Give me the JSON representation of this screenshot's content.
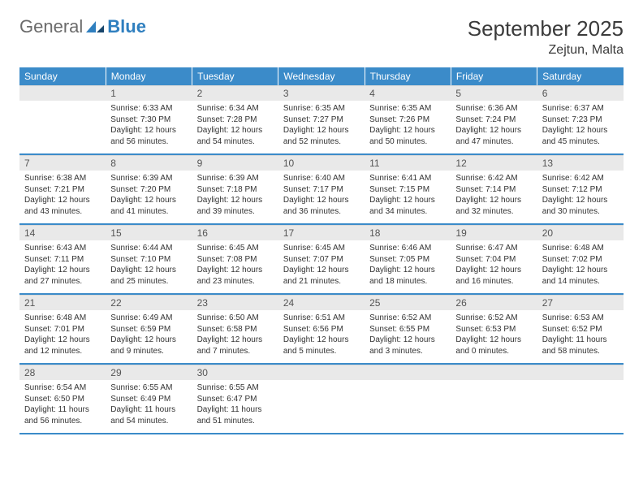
{
  "logo": {
    "text1": "General",
    "text2": "Blue"
  },
  "title": "September 2025",
  "location": "Zejtun, Malta",
  "dow": [
    "Sunday",
    "Monday",
    "Tuesday",
    "Wednesday",
    "Thursday",
    "Friday",
    "Saturday"
  ],
  "colors": {
    "header_bg": "#3b8bc9",
    "header_text": "#ffffff",
    "daynum_bg": "#e9e9e9",
    "row_border": "#3b8bc9",
    "logo_gray": "#6b6b6b",
    "logo_blue": "#2f7fbf",
    "text": "#333333"
  },
  "fonts": {
    "month_title_pt": 26,
    "location_pt": 16,
    "dow_pt": 12,
    "daynum_pt": 12,
    "daydata_pt": 10
  },
  "weeks": [
    [
      {
        "n": "",
        "sr": "",
        "ss": "",
        "dl": ""
      },
      {
        "n": "1",
        "sr": "Sunrise: 6:33 AM",
        "ss": "Sunset: 7:30 PM",
        "dl": "Daylight: 12 hours and 56 minutes."
      },
      {
        "n": "2",
        "sr": "Sunrise: 6:34 AM",
        "ss": "Sunset: 7:28 PM",
        "dl": "Daylight: 12 hours and 54 minutes."
      },
      {
        "n": "3",
        "sr": "Sunrise: 6:35 AM",
        "ss": "Sunset: 7:27 PM",
        "dl": "Daylight: 12 hours and 52 minutes."
      },
      {
        "n": "4",
        "sr": "Sunrise: 6:35 AM",
        "ss": "Sunset: 7:26 PM",
        "dl": "Daylight: 12 hours and 50 minutes."
      },
      {
        "n": "5",
        "sr": "Sunrise: 6:36 AM",
        "ss": "Sunset: 7:24 PM",
        "dl": "Daylight: 12 hours and 47 minutes."
      },
      {
        "n": "6",
        "sr": "Sunrise: 6:37 AM",
        "ss": "Sunset: 7:23 PM",
        "dl": "Daylight: 12 hours and 45 minutes."
      }
    ],
    [
      {
        "n": "7",
        "sr": "Sunrise: 6:38 AM",
        "ss": "Sunset: 7:21 PM",
        "dl": "Daylight: 12 hours and 43 minutes."
      },
      {
        "n": "8",
        "sr": "Sunrise: 6:39 AM",
        "ss": "Sunset: 7:20 PM",
        "dl": "Daylight: 12 hours and 41 minutes."
      },
      {
        "n": "9",
        "sr": "Sunrise: 6:39 AM",
        "ss": "Sunset: 7:18 PM",
        "dl": "Daylight: 12 hours and 39 minutes."
      },
      {
        "n": "10",
        "sr": "Sunrise: 6:40 AM",
        "ss": "Sunset: 7:17 PM",
        "dl": "Daylight: 12 hours and 36 minutes."
      },
      {
        "n": "11",
        "sr": "Sunrise: 6:41 AM",
        "ss": "Sunset: 7:15 PM",
        "dl": "Daylight: 12 hours and 34 minutes."
      },
      {
        "n": "12",
        "sr": "Sunrise: 6:42 AM",
        "ss": "Sunset: 7:14 PM",
        "dl": "Daylight: 12 hours and 32 minutes."
      },
      {
        "n": "13",
        "sr": "Sunrise: 6:42 AM",
        "ss": "Sunset: 7:12 PM",
        "dl": "Daylight: 12 hours and 30 minutes."
      }
    ],
    [
      {
        "n": "14",
        "sr": "Sunrise: 6:43 AM",
        "ss": "Sunset: 7:11 PM",
        "dl": "Daylight: 12 hours and 27 minutes."
      },
      {
        "n": "15",
        "sr": "Sunrise: 6:44 AM",
        "ss": "Sunset: 7:10 PM",
        "dl": "Daylight: 12 hours and 25 minutes."
      },
      {
        "n": "16",
        "sr": "Sunrise: 6:45 AM",
        "ss": "Sunset: 7:08 PM",
        "dl": "Daylight: 12 hours and 23 minutes."
      },
      {
        "n": "17",
        "sr": "Sunrise: 6:45 AM",
        "ss": "Sunset: 7:07 PM",
        "dl": "Daylight: 12 hours and 21 minutes."
      },
      {
        "n": "18",
        "sr": "Sunrise: 6:46 AM",
        "ss": "Sunset: 7:05 PM",
        "dl": "Daylight: 12 hours and 18 minutes."
      },
      {
        "n": "19",
        "sr": "Sunrise: 6:47 AM",
        "ss": "Sunset: 7:04 PM",
        "dl": "Daylight: 12 hours and 16 minutes."
      },
      {
        "n": "20",
        "sr": "Sunrise: 6:48 AM",
        "ss": "Sunset: 7:02 PM",
        "dl": "Daylight: 12 hours and 14 minutes."
      }
    ],
    [
      {
        "n": "21",
        "sr": "Sunrise: 6:48 AM",
        "ss": "Sunset: 7:01 PM",
        "dl": "Daylight: 12 hours and 12 minutes."
      },
      {
        "n": "22",
        "sr": "Sunrise: 6:49 AM",
        "ss": "Sunset: 6:59 PM",
        "dl": "Daylight: 12 hours and 9 minutes."
      },
      {
        "n": "23",
        "sr": "Sunrise: 6:50 AM",
        "ss": "Sunset: 6:58 PM",
        "dl": "Daylight: 12 hours and 7 minutes."
      },
      {
        "n": "24",
        "sr": "Sunrise: 6:51 AM",
        "ss": "Sunset: 6:56 PM",
        "dl": "Daylight: 12 hours and 5 minutes."
      },
      {
        "n": "25",
        "sr": "Sunrise: 6:52 AM",
        "ss": "Sunset: 6:55 PM",
        "dl": "Daylight: 12 hours and 3 minutes."
      },
      {
        "n": "26",
        "sr": "Sunrise: 6:52 AM",
        "ss": "Sunset: 6:53 PM",
        "dl": "Daylight: 12 hours and 0 minutes."
      },
      {
        "n": "27",
        "sr": "Sunrise: 6:53 AM",
        "ss": "Sunset: 6:52 PM",
        "dl": "Daylight: 11 hours and 58 minutes."
      }
    ],
    [
      {
        "n": "28",
        "sr": "Sunrise: 6:54 AM",
        "ss": "Sunset: 6:50 PM",
        "dl": "Daylight: 11 hours and 56 minutes."
      },
      {
        "n": "29",
        "sr": "Sunrise: 6:55 AM",
        "ss": "Sunset: 6:49 PM",
        "dl": "Daylight: 11 hours and 54 minutes."
      },
      {
        "n": "30",
        "sr": "Sunrise: 6:55 AM",
        "ss": "Sunset: 6:47 PM",
        "dl": "Daylight: 11 hours and 51 minutes."
      },
      {
        "n": "",
        "sr": "",
        "ss": "",
        "dl": ""
      },
      {
        "n": "",
        "sr": "",
        "ss": "",
        "dl": ""
      },
      {
        "n": "",
        "sr": "",
        "ss": "",
        "dl": ""
      },
      {
        "n": "",
        "sr": "",
        "ss": "",
        "dl": ""
      }
    ]
  ]
}
